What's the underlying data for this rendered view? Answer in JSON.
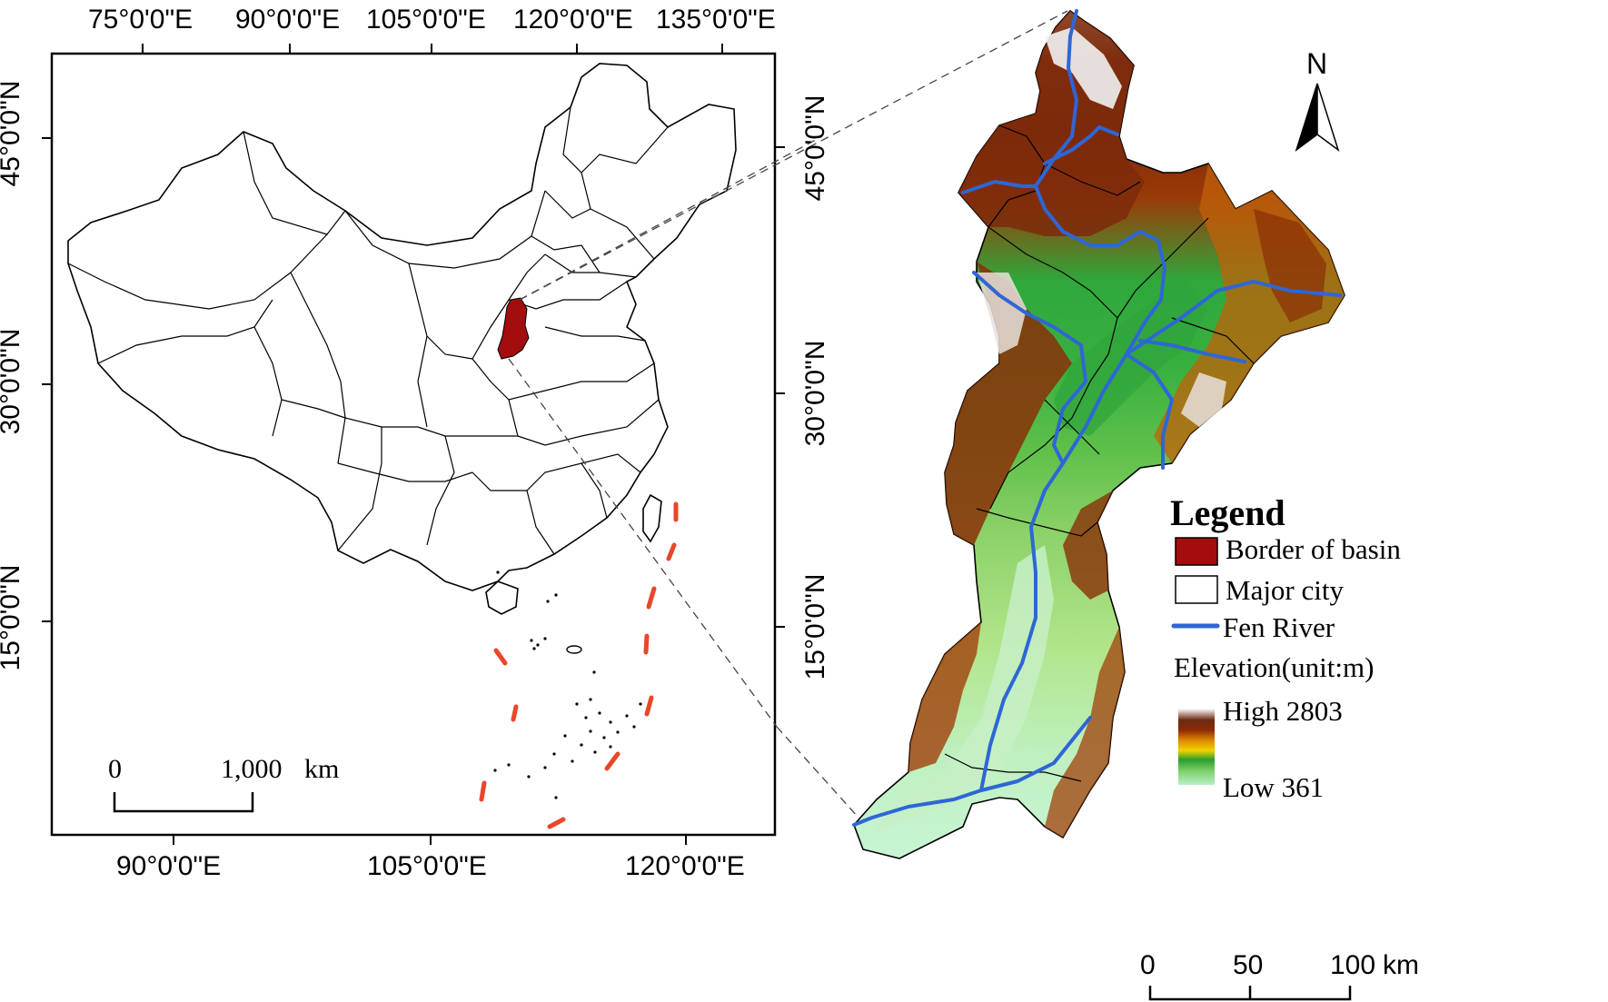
{
  "inset_map": {
    "top_lon_labels": [
      "75°0'0\"E",
      "90°0'0\"E",
      "105°0'0\"E",
      "120°0'0\"E",
      "135°0'0\"E"
    ],
    "bottom_lon_labels": [
      "90°0'0\"E",
      "105°0'0\"E",
      "120°0'0\"E"
    ],
    "left_lat_labels": [
      "45°0'0\"N",
      "30°0'0\"N",
      "15°0'0\"N"
    ],
    "right_lat_labels": [
      "45°0'0\"N",
      "30°0'0\"N",
      "15°0'0\"N"
    ],
    "scale_bar": {
      "zero": "0",
      "distance": "1,000",
      "unit": "km"
    },
    "highlight_color": "#a30d0d",
    "dash_line_color": "#e8472a"
  },
  "basin_map": {
    "north_arrow": "N",
    "scale_bar": {
      "zero": "0",
      "mid": "50",
      "max": "100",
      "unit": "km"
    }
  },
  "legend": {
    "title": "Legend",
    "border_of_basin": "Border of basin",
    "major_city": "Major city",
    "fen_river": "Fen River",
    "elevation_title": "Elevation(unit:m)",
    "high": "High 2803",
    "low": "Low 361",
    "basin_color": "#a30d0d",
    "river_color": "#2e66d6"
  }
}
